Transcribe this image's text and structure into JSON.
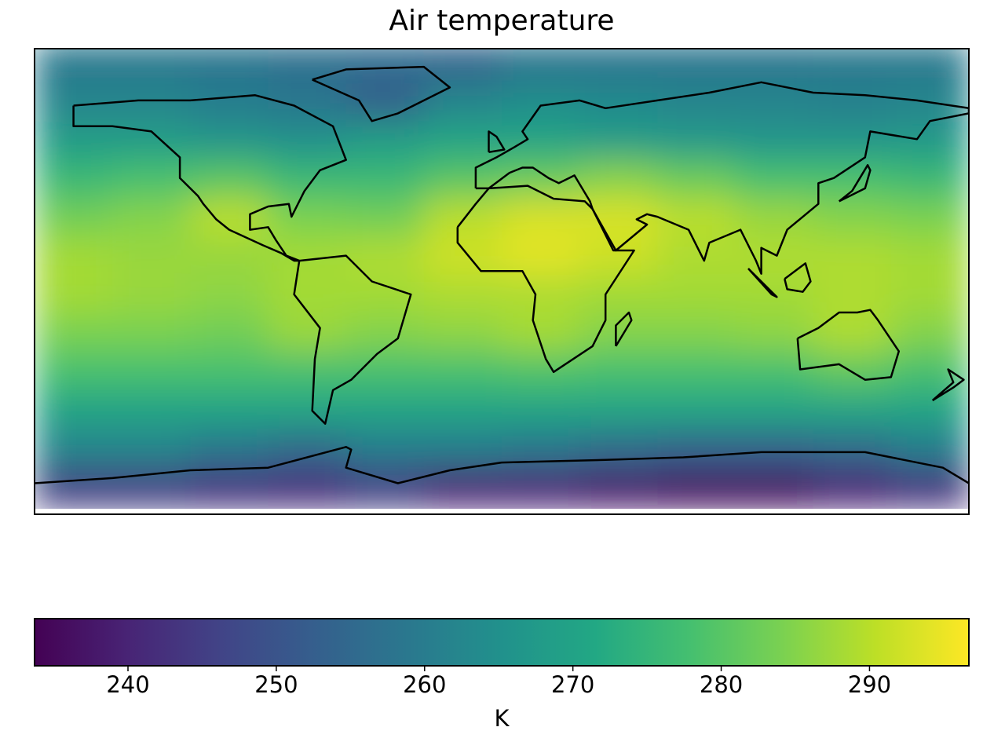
{
  "chart_data": {
    "type": "heatmap",
    "title": "Air temperature",
    "lon": [
      -165,
      -135,
      -105,
      -75,
      -45,
      -15,
      15,
      45,
      75,
      105,
      135,
      165
    ],
    "lat": [
      85,
      70,
      55,
      40,
      25,
      10,
      -5,
      -20,
      -35,
      -50,
      -65,
      -80
    ],
    "values": [
      [
        259,
        259,
        258,
        257,
        256,
        254,
        258,
        258,
        258,
        258,
        259,
        259
      ],
      [
        262,
        262,
        260,
        258,
        253,
        262,
        264,
        263,
        262,
        262,
        261,
        262
      ],
      [
        268,
        268,
        266,
        265,
        268,
        270,
        270,
        268,
        267,
        266,
        266,
        267
      ],
      [
        276,
        278,
        280,
        276,
        276,
        280,
        282,
        285,
        282,
        278,
        278,
        276
      ],
      [
        283,
        285,
        290,
        284,
        283,
        290,
        293,
        293,
        290,
        287,
        285,
        284
      ],
      [
        288,
        287,
        287,
        288,
        289,
        292,
        294,
        292,
        289,
        289,
        289,
        288
      ],
      [
        288,
        287,
        286,
        288,
        288,
        289,
        289,
        288,
        288,
        288,
        289,
        288
      ],
      [
        284,
        284,
        283,
        287,
        285,
        286,
        288,
        285,
        285,
        286,
        289,
        285
      ],
      [
        278,
        278,
        278,
        278,
        278,
        278,
        279,
        278,
        278,
        278,
        281,
        278
      ],
      [
        270,
        270,
        270,
        270,
        270,
        270,
        270,
        270,
        270,
        270,
        270,
        270
      ],
      [
        262,
        262,
        258,
        255,
        260,
        260,
        258,
        255,
        253,
        253,
        255,
        260
      ],
      [
        245,
        245,
        243,
        242,
        245,
        240,
        240,
        238,
        236,
        236,
        240,
        243
      ]
    ],
    "colormap": "viridis",
    "colorbar": {
      "label": "K",
      "lim": [
        233.7,
        296.7
      ],
      "ticks": [
        240,
        250,
        260,
        270,
        280,
        290
      ]
    }
  }
}
